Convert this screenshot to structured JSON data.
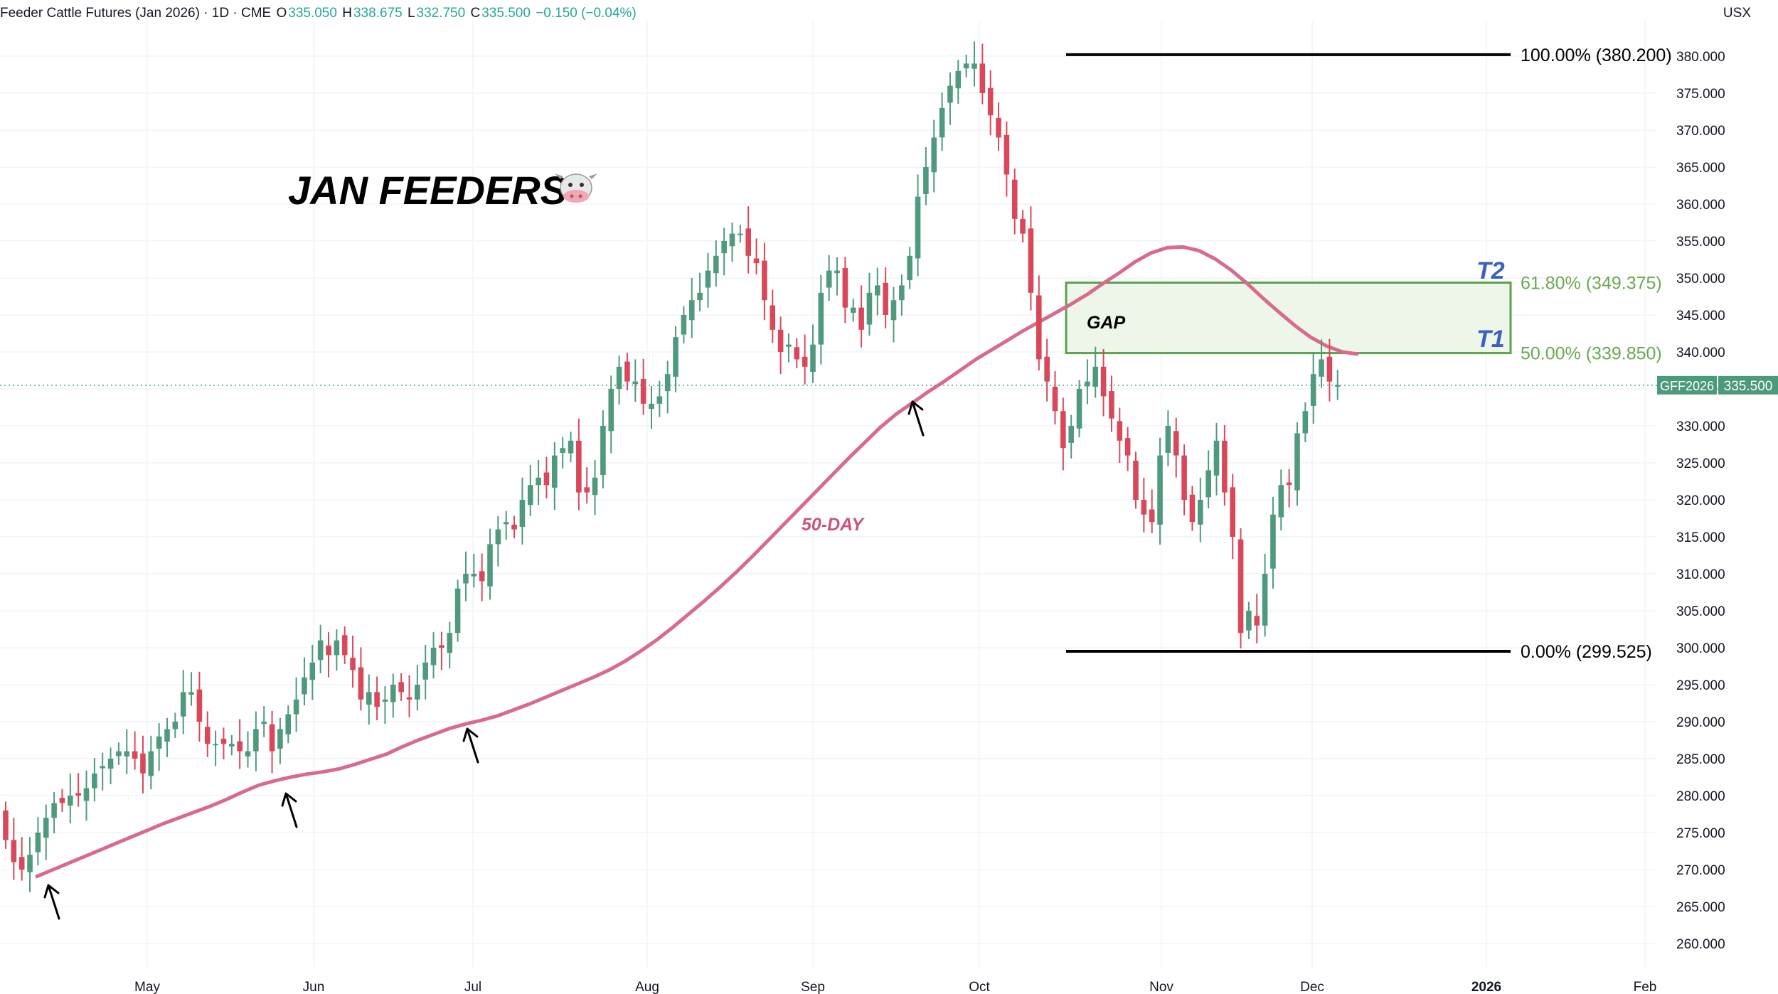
{
  "header": {
    "symbol_title": "Feeder Cattle Futures (Jan 2026) · 1D · CME",
    "open_label": "O",
    "open_value": "335.050",
    "high_label": "H",
    "high_value": "338.675",
    "low_label": "L",
    "low_value": "332.750",
    "close_label": "C",
    "close_value": "335.500",
    "change": "−0.150 (−0.04%)"
  },
  "currency": "USX",
  "colors": {
    "up": "#4f9a7d",
    "down": "#d9485a",
    "ma": "#d96a8f",
    "zone_fill": "#eaf5e4",
    "zone_stroke": "#5aa34a",
    "fib_text": "#6aa84f",
    "target_text": "#3b5fc7",
    "grid": "#f0f3f7",
    "price_tag": "#4a9a7b"
  },
  "chart_data": {
    "type": "candlestick",
    "title": "JAN FEEDERS",
    "title_icon": "cow-face-icon",
    "x_ticks": [
      "May",
      "Jun",
      "Jul",
      "Aug",
      "Sep",
      "Oct",
      "Nov",
      "Dec",
      "2026",
      "Feb"
    ],
    "y_ticks": [
      "260.000",
      "265.000",
      "270.000",
      "275.000",
      "280.000",
      "285.000",
      "290.000",
      "295.000",
      "300.000",
      "305.000",
      "310.000",
      "315.000",
      "320.000",
      "325.000",
      "330.000",
      "335.000",
      "340.000",
      "345.000",
      "350.000",
      "355.000",
      "360.000",
      "365.000",
      "370.000",
      "375.000",
      "380.000"
    ],
    "ylim": [
      258,
      384
    ],
    "grid": true,
    "close_series": [
      274,
      271,
      270,
      272,
      275,
      277,
      279,
      279,
      280,
      280,
      281,
      283,
      284,
      285,
      286,
      286,
      285,
      283,
      286,
      288,
      289,
      290,
      294,
      294,
      290,
      287,
      287,
      287,
      287,
      286,
      286,
      289,
      290,
      286,
      289,
      291,
      293,
      296,
      298,
      301,
      299,
      301,
      299,
      297,
      293,
      294,
      292,
      293,
      295,
      294,
      293,
      295,
      298,
      300,
      300,
      302,
      308,
      310,
      310,
      309,
      314,
      316,
      317,
      316,
      320,
      322,
      323,
      322,
      326,
      327,
      328,
      321,
      321,
      323,
      330,
      335,
      338,
      336,
      336,
      333,
      333,
      334,
      337,
      342,
      345,
      347,
      348,
      351,
      353,
      355,
      356,
      356,
      353,
      352,
      347,
      343,
      340,
      341,
      339,
      338,
      341,
      348,
      351,
      351,
      346,
      346,
      343,
      348,
      349,
      345,
      347,
      349,
      353,
      361,
      365,
      369,
      373,
      376,
      378,
      379,
      379,
      375,
      372,
      369,
      364,
      358,
      356,
      348,
      339,
      336,
      332,
      327,
      330,
      335,
      336,
      338,
      334,
      331,
      328,
      326,
      320,
      318,
      317,
      326,
      330,
      326,
      320,
      317,
      320,
      324,
      328,
      321,
      315,
      302,
      305,
      303,
      310,
      318,
      322,
      322,
      329,
      332,
      337,
      339,
      336,
      335.5
    ],
    "ma_label": "50-DAY",
    "ma_series": [
      269,
      269.9,
      270.8,
      271.7,
      272.6,
      273.5,
      274.4,
      275.3,
      276.2,
      277,
      277.8,
      278.6,
      279.5,
      280.5,
      281.4,
      282.0,
      282.5,
      282.9,
      283.2,
      283.6,
      284.2,
      284.9,
      285.6,
      286.6,
      287.5,
      288.3,
      289.1,
      289.7,
      290.2,
      290.8,
      291.6,
      292.4,
      293.3,
      294.2,
      295.1,
      296.0,
      297.0,
      298.2,
      299.6,
      301.1,
      302.8,
      304.6,
      306.4,
      308.3,
      310.3,
      312.4,
      314.6,
      316.8,
      319.0,
      321.2,
      323.4,
      325.6,
      327.7,
      329.8,
      331.6,
      333.1,
      334.6,
      336.0,
      337.5,
      339.0,
      340.3,
      341.6,
      342.9,
      344.1,
      345.3,
      346.5,
      347.8,
      349.3,
      350.7,
      352.2,
      353.4,
      354.1,
      354.2,
      353.7,
      352.6,
      351.1,
      349.3,
      347.3,
      345.4,
      343.6,
      342.0,
      340.8,
      340.0,
      339.7
    ],
    "ma_start_index": 0,
    "fib_levels": [
      {
        "label": "100.00% (380.200)",
        "value": 380.2
      },
      {
        "label": "61.80% (349.375)",
        "value": 349.375
      },
      {
        "label": "50.00% (339.850)",
        "value": 339.85
      },
      {
        "label": "0.00% (299.525)",
        "value": 299.525
      }
    ],
    "zone": {
      "top": 349.375,
      "bottom": 339.85
    },
    "annotations": {
      "gap": "GAP",
      "ma": "50-DAY",
      "target1": "T1",
      "target2": "T2"
    },
    "last_price_tag": {
      "symbol": "GFF2026",
      "price": "335.500",
      "value": 335.5
    }
  }
}
